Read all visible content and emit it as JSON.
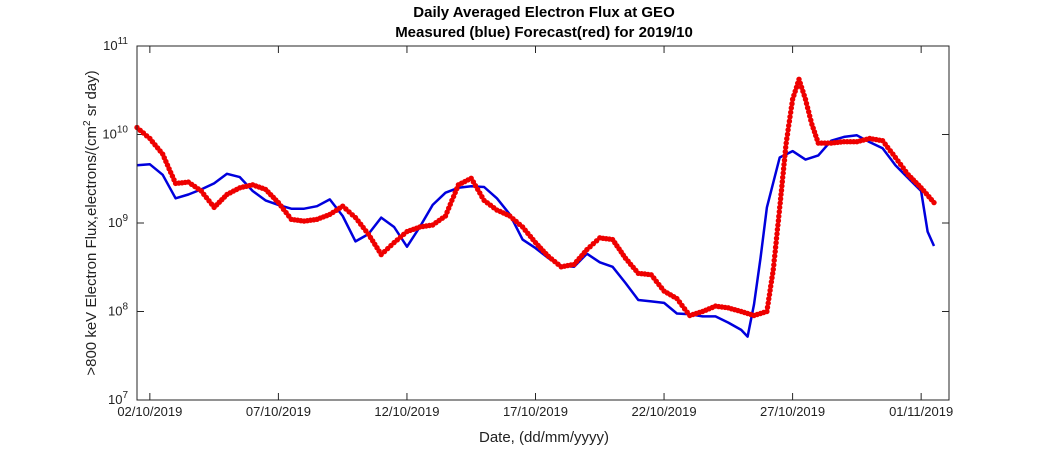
{
  "chart_data": {
    "type": "line",
    "title": "Daily Averaged Electron Flux at GEO",
    "subtitle": "Measured (blue) Forecast(red) for 2019/10",
    "xlabel": "Date, (dd/mm/yyyy)",
    "ylabel_main": ">800 keV Electron Flux,electrons/(cm",
    "ylabel_sup": "2",
    "ylabel_tail": " sr day)",
    "y_scale": "log",
    "xlim": [
      "2019-10-01T12:00",
      "2019-11-02T02:00"
    ],
    "ylim": [
      10000000,
      100000000000
    ],
    "x_ticks": [
      {
        "date": "2019-10-02",
        "label": "02/10/2019"
      },
      {
        "date": "2019-10-07",
        "label": "07/10/2019"
      },
      {
        "date": "2019-10-12",
        "label": "12/10/2019"
      },
      {
        "date": "2019-10-17",
        "label": "17/10/2019"
      },
      {
        "date": "2019-10-22",
        "label": "22/10/2019"
      },
      {
        "date": "2019-10-27",
        "label": "27/10/2019"
      },
      {
        "date": "2019-11-01",
        "label": "01/11/2019"
      }
    ],
    "y_ticks": [
      {
        "value": 10000000,
        "base": "10",
        "exp": "7"
      },
      {
        "value": 100000000,
        "base": "10",
        "exp": "8"
      },
      {
        "value": 1000000000,
        "base": "10",
        "exp": "9"
      },
      {
        "value": 10000000000,
        "base": "10",
        "exp": "10"
      },
      {
        "value": 100000000000,
        "base": "10",
        "exp": "11"
      }
    ],
    "grid": false,
    "series": [
      {
        "key": "measured",
        "color": "#0000dd",
        "style": "line",
        "points": [
          [
            "2019-10-01T12:00",
            4500000000.0
          ],
          [
            "2019-10-02T00:00",
            4600000000.0
          ],
          [
            "2019-10-02T12:00",
            3500000000.0
          ],
          [
            "2019-10-03T00:00",
            1900000000.0
          ],
          [
            "2019-10-03T12:00",
            2100000000.0
          ],
          [
            "2019-10-04T00:00",
            2400000000.0
          ],
          [
            "2019-10-04T12:00",
            2800000000.0
          ],
          [
            "2019-10-05T00:00",
            3600000000.0
          ],
          [
            "2019-10-05T12:00",
            3300000000.0
          ],
          [
            "2019-10-06T00:00",
            2300000000.0
          ],
          [
            "2019-10-06T12:00",
            1800000000.0
          ],
          [
            "2019-10-07T00:00",
            1600000000.0
          ],
          [
            "2019-10-07T12:00",
            1450000000.0
          ],
          [
            "2019-10-08T00:00",
            1450000000.0
          ],
          [
            "2019-10-08T12:00",
            1550000000.0
          ],
          [
            "2019-10-09T00:00",
            1850000000.0
          ],
          [
            "2019-10-09T12:00",
            1200000000.0
          ],
          [
            "2019-10-10T00:00",
            620000000.0
          ],
          [
            "2019-10-10T12:00",
            750000000.0
          ],
          [
            "2019-10-11T00:00",
            1150000000.0
          ],
          [
            "2019-10-11T12:00",
            900000000.0
          ],
          [
            "2019-10-12T00:00",
            540000000.0
          ],
          [
            "2019-10-12T12:00",
            900000000.0
          ],
          [
            "2019-10-13T00:00",
            1600000000.0
          ],
          [
            "2019-10-13T12:00",
            2200000000.0
          ],
          [
            "2019-10-14T00:00",
            2500000000.0
          ],
          [
            "2019-10-14T12:00",
            2600000000.0
          ],
          [
            "2019-10-15T00:00",
            2550000000.0
          ],
          [
            "2019-10-15T12:00",
            1900000000.0
          ],
          [
            "2019-10-16T00:00",
            1250000000.0
          ],
          [
            "2019-10-16T12:00",
            650000000.0
          ],
          [
            "2019-10-17T00:00",
            520000000.0
          ],
          [
            "2019-10-17T12:00",
            400000000.0
          ],
          [
            "2019-10-18T00:00",
            330000000.0
          ],
          [
            "2019-10-18T12:00",
            320000000.0
          ],
          [
            "2019-10-19T00:00",
            450000000.0
          ],
          [
            "2019-10-19T12:00",
            360000000.0
          ],
          [
            "2019-10-20T00:00",
            320000000.0
          ],
          [
            "2019-10-20T12:00",
            210000000.0
          ],
          [
            "2019-10-21T00:00",
            135000000.0
          ],
          [
            "2019-10-21T12:00",
            130000000.0
          ],
          [
            "2019-10-22T00:00",
            125000000.0
          ],
          [
            "2019-10-22T12:00",
            95000000.0
          ],
          [
            "2019-10-23T00:00",
            93000000.0
          ],
          [
            "2019-10-23T12:00",
            88000000.0
          ],
          [
            "2019-10-24T00:00",
            88000000.0
          ],
          [
            "2019-10-24T12:00",
            75000000.0
          ],
          [
            "2019-10-25T00:00",
            62000000.0
          ],
          [
            "2019-10-25T06:00",
            52000000.0
          ],
          [
            "2019-10-25T12:00",
            120000000.0
          ],
          [
            "2019-10-25T18:00",
            400000000.0
          ],
          [
            "2019-10-26T00:00",
            1500000000.0
          ],
          [
            "2019-10-26T12:00",
            5500000000.0
          ],
          [
            "2019-10-27T00:00",
            6500000000.0
          ],
          [
            "2019-10-27T12:00",
            5200000000.0
          ],
          [
            "2019-10-28T00:00",
            5800000000.0
          ],
          [
            "2019-10-28T12:00",
            8500000000.0
          ],
          [
            "2019-10-29T00:00",
            9400000000.0
          ],
          [
            "2019-10-29T12:00",
            9800000000.0
          ],
          [
            "2019-10-30T00:00",
            8200000000.0
          ],
          [
            "2019-10-30T12:00",
            7000000000.0
          ],
          [
            "2019-10-31T00:00",
            4500000000.0
          ],
          [
            "2019-10-31T12:00",
            3200000000.0
          ],
          [
            "2019-11-01T00:00",
            2300000000.0
          ],
          [
            "2019-11-01T06:00",
            800000000.0
          ],
          [
            "2019-11-01T12:00",
            550000000.0
          ]
        ]
      },
      {
        "key": "forecast",
        "color": "#ee0000",
        "style": "dots",
        "points": [
          [
            "2019-10-01T12:00",
            12000000000.0
          ],
          [
            "2019-10-02T00:00",
            9000000000.0
          ],
          [
            "2019-10-02T12:00",
            6000000000.0
          ],
          [
            "2019-10-03T00:00",
            2800000000.0
          ],
          [
            "2019-10-03T12:00",
            2900000000.0
          ],
          [
            "2019-10-04T00:00",
            2300000000.0
          ],
          [
            "2019-10-04T12:00",
            1500000000.0
          ],
          [
            "2019-10-05T00:00",
            2100000000.0
          ],
          [
            "2019-10-05T12:00",
            2500000000.0
          ],
          [
            "2019-10-06T00:00",
            2700000000.0
          ],
          [
            "2019-10-06T12:00",
            2400000000.0
          ],
          [
            "2019-10-07T00:00",
            1700000000.0
          ],
          [
            "2019-10-07T12:00",
            1100000000.0
          ],
          [
            "2019-10-08T00:00",
            1050000000.0
          ],
          [
            "2019-10-08T12:00",
            1100000000.0
          ],
          [
            "2019-10-09T00:00",
            1250000000.0
          ],
          [
            "2019-10-09T12:00",
            1550000000.0
          ],
          [
            "2019-10-10T00:00",
            1150000000.0
          ],
          [
            "2019-10-10T12:00",
            750000000.0
          ],
          [
            "2019-10-11T00:00",
            440000000.0
          ],
          [
            "2019-10-11T12:00",
            600000000.0
          ],
          [
            "2019-10-12T00:00",
            800000000.0
          ],
          [
            "2019-10-12T12:00",
            900000000.0
          ],
          [
            "2019-10-13T00:00",
            950000000.0
          ],
          [
            "2019-10-13T12:00",
            1200000000.0
          ],
          [
            "2019-10-14T00:00",
            2700000000.0
          ],
          [
            "2019-10-14T12:00",
            3200000000.0
          ],
          [
            "2019-10-15T00:00",
            1800000000.0
          ],
          [
            "2019-10-15T12:00",
            1400000000.0
          ],
          [
            "2019-10-16T00:00",
            1200000000.0
          ],
          [
            "2019-10-16T12:00",
            900000000.0
          ],
          [
            "2019-10-17T00:00",
            600000000.0
          ],
          [
            "2019-10-17T12:00",
            420000000.0
          ],
          [
            "2019-10-18T00:00",
            320000000.0
          ],
          [
            "2019-10-18T12:00",
            340000000.0
          ],
          [
            "2019-10-19T00:00",
            500000000.0
          ],
          [
            "2019-10-19T12:00",
            680000000.0
          ],
          [
            "2019-10-20T00:00",
            650000000.0
          ],
          [
            "2019-10-20T12:00",
            400000000.0
          ],
          [
            "2019-10-21T00:00",
            270000000.0
          ],
          [
            "2019-10-21T12:00",
            260000000.0
          ],
          [
            "2019-10-22T00:00",
            170000000.0
          ],
          [
            "2019-10-22T12:00",
            140000000.0
          ],
          [
            "2019-10-23T00:00",
            90000000.0
          ],
          [
            "2019-10-23T12:00",
            100000000.0
          ],
          [
            "2019-10-24T00:00",
            115000000.0
          ],
          [
            "2019-10-24T12:00",
            110000000.0
          ],
          [
            "2019-10-25T00:00",
            100000000.0
          ],
          [
            "2019-10-25T12:00",
            90000000.0
          ],
          [
            "2019-10-26T00:00",
            100000000.0
          ],
          [
            "2019-10-26T06:00",
            300000000.0
          ],
          [
            "2019-10-26T12:00",
            1500000000.0
          ],
          [
            "2019-10-26T18:00",
            8000000000.0
          ],
          [
            "2019-10-27T00:00",
            25000000000.0
          ],
          [
            "2019-10-27T06:00",
            42000000000.0
          ],
          [
            "2019-10-27T12:00",
            25000000000.0
          ],
          [
            "2019-10-27T18:00",
            13000000000.0
          ],
          [
            "2019-10-28T00:00",
            8000000000.0
          ],
          [
            "2019-10-28T12:00",
            8000000000.0
          ],
          [
            "2019-10-29T00:00",
            8300000000.0
          ],
          [
            "2019-10-29T12:00",
            8300000000.0
          ],
          [
            "2019-10-30T00:00",
            9000000000.0
          ],
          [
            "2019-10-30T12:00",
            8500000000.0
          ],
          [
            "2019-10-31T00:00",
            5500000000.0
          ],
          [
            "2019-10-31T12:00",
            3500000000.0
          ],
          [
            "2019-11-01T00:00",
            2500000000.0
          ],
          [
            "2019-11-01T12:00",
            1700000000.0
          ]
        ]
      }
    ]
  }
}
